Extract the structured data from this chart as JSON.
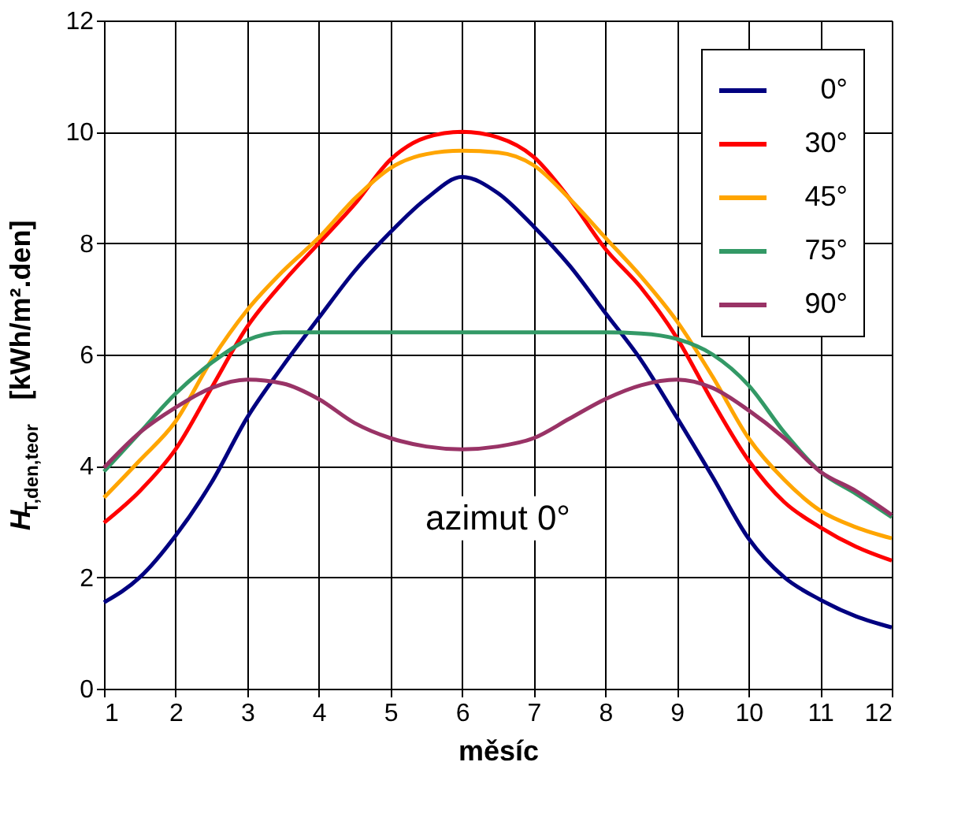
{
  "chart_data": {
    "type": "line",
    "xlabel": "měsíc",
    "ylabel": "H$_{T,den,teor}$ [kWh/m².den]",
    "x": [
      1,
      1.5,
      2,
      2.5,
      3,
      3.5,
      4,
      4.5,
      5,
      5.5,
      6,
      6.5,
      7,
      7.5,
      8,
      8.5,
      9,
      9.5,
      10,
      10.5,
      11,
      11.5,
      12
    ],
    "series": [
      {
        "name": "0°",
        "color": "#000080",
        "values": [
          1.55,
          2.0,
          2.75,
          3.7,
          4.87,
          5.8,
          6.66,
          7.5,
          8.2,
          8.8,
          9.19,
          8.9,
          8.3,
          7.6,
          6.75,
          5.9,
          4.87,
          3.8,
          2.7,
          2.0,
          1.6,
          1.3,
          1.1
        ]
      },
      {
        "name": "30°",
        "color": "#ff0000",
        "values": [
          2.98,
          3.55,
          4.3,
          5.4,
          6.5,
          7.3,
          8.0,
          8.7,
          9.5,
          9.9,
          10.0,
          9.9,
          9.55,
          8.8,
          7.9,
          7.2,
          6.3,
          5.15,
          4.1,
          3.35,
          2.9,
          2.55,
          2.3
        ]
      },
      {
        "name": "45°",
        "color": "#ffa500",
        "values": [
          3.43,
          4.1,
          4.8,
          5.9,
          6.8,
          7.5,
          8.1,
          8.8,
          9.35,
          9.6,
          9.66,
          9.63,
          9.4,
          8.8,
          8.1,
          7.4,
          6.6,
          5.6,
          4.5,
          3.75,
          3.2,
          2.9,
          2.7
        ]
      },
      {
        "name": "75°",
        "color": "#339966",
        "values": [
          3.9,
          4.6,
          5.3,
          5.85,
          6.26,
          6.4,
          6.4,
          6.4,
          6.4,
          6.4,
          6.4,
          6.4,
          6.4,
          6.4,
          6.4,
          6.38,
          6.28,
          6.0,
          5.45,
          4.6,
          3.9,
          3.5,
          3.08
        ]
      },
      {
        "name": "90°",
        "color": "#993366",
        "values": [
          3.97,
          4.6,
          5.05,
          5.4,
          5.55,
          5.48,
          5.2,
          4.77,
          4.5,
          4.35,
          4.3,
          4.35,
          4.5,
          4.85,
          5.2,
          5.45,
          5.55,
          5.4,
          5.0,
          4.5,
          3.9,
          3.55,
          3.12
        ]
      }
    ],
    "xlim": [
      1,
      12
    ],
    "xticks": [
      1,
      2,
      3,
      4,
      5,
      6,
      7,
      8,
      9,
      10,
      11,
      12
    ],
    "ylim": [
      0,
      12
    ],
    "yticks": [
      0,
      2,
      4,
      6,
      8,
      10,
      12
    ],
    "annotations": [
      "azimut 0°"
    ],
    "grid": true,
    "legend": "top right",
    "marker": "none",
    "line_style": "solid"
  }
}
